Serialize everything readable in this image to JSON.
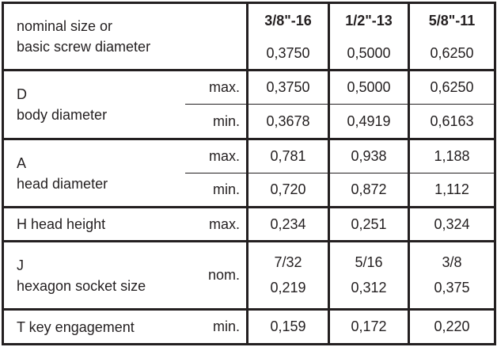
{
  "columns": [
    "3/8\"-16",
    "1/2\"-13",
    "5/8\"-11"
  ],
  "rows": {
    "nominal": {
      "label_line1": "nominal size or",
      "label_line2": "basic screw diameter",
      "values": [
        "0,3750",
        "0,5000",
        "0,6250"
      ]
    },
    "body_diameter": {
      "label_line1": "D",
      "label_line2": "body diameter",
      "max_label": "max.",
      "min_label": "min.",
      "max_values": [
        "0,3750",
        "0,5000",
        "0,6250"
      ],
      "min_values": [
        "0,3678",
        "0,4919",
        "0,6163"
      ]
    },
    "head_diameter": {
      "label_line1": "A",
      "label_line2": "head diameter",
      "max_label": "max.",
      "min_label": "min.",
      "max_values": [
        "0,781",
        "0,938",
        "1,188"
      ],
      "min_values": [
        "0,720",
        "0,872",
        "1,112"
      ]
    },
    "head_height": {
      "label": "H head height",
      "limit_label": "max.",
      "values": [
        "0,234",
        "0,251",
        "0,324"
      ]
    },
    "socket_size": {
      "label_line1": "J",
      "label_line2": "hexagon socket size",
      "limit_label": "nom.",
      "fraction_values": [
        "7/32",
        "5/16",
        "3/8"
      ],
      "decimal_values": [
        "0,219",
        "0,312",
        "0,375"
      ]
    },
    "key_engagement": {
      "label": "T key engagement",
      "limit_label": "min.",
      "values": [
        "0,159",
        "0,172",
        "0,220"
      ]
    }
  }
}
